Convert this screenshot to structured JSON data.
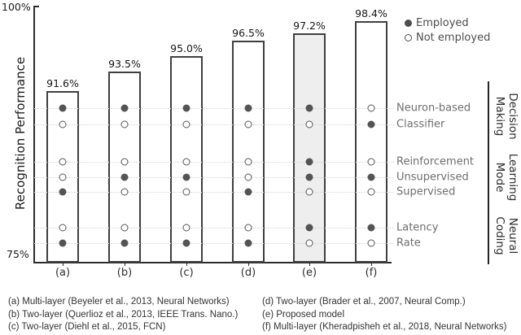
{
  "chart_data": {
    "type": "bar",
    "ylabel": "Recognition Performance",
    "ylim": [
      75,
      100
    ],
    "ytick_top": "100%",
    "ytick_bottom": "75%",
    "grid": "dotted horizontal guide line at each feature row",
    "categories": [
      "(a)",
      "(b)",
      "(c)",
      "(d)",
      "(e)",
      "(f)"
    ],
    "values": [
      91.6,
      93.5,
      95.0,
      96.5,
      97.2,
      98.4
    ],
    "value_labels": [
      "91.6%",
      "93.5%",
      "95.0%",
      "96.5%",
      "97.2%",
      "98.4%"
    ],
    "highlight_index": 4,
    "legend": {
      "position": "top-right",
      "items": [
        {
          "marker": "filled-circle",
          "label": "Employed"
        },
        {
          "marker": "open-circle",
          "label": "Not employed"
        }
      ]
    },
    "feature_rows": [
      {
        "label": "Neuron-based",
        "employed": [
          true,
          true,
          true,
          true,
          true,
          false
        ]
      },
      {
        "label": "Classifier",
        "employed": [
          false,
          false,
          false,
          false,
          false,
          true
        ]
      },
      {
        "label": "Reinforcement",
        "employed": [
          false,
          false,
          false,
          false,
          true,
          false
        ]
      },
      {
        "label": "Unsupervised",
        "employed": [
          false,
          true,
          true,
          false,
          true,
          true
        ]
      },
      {
        "label": "Supervised",
        "employed": [
          true,
          false,
          false,
          true,
          false,
          false
        ]
      },
      {
        "label": "Latency",
        "employed": [
          false,
          false,
          false,
          false,
          true,
          true
        ]
      },
      {
        "label": "Rate",
        "employed": [
          true,
          true,
          true,
          true,
          false,
          false
        ]
      }
    ],
    "row_groups": [
      {
        "label_lines": [
          "Decision",
          "Making"
        ],
        "rows": [
          0,
          1
        ]
      },
      {
        "label_lines": [
          "Learning",
          "Mode"
        ],
        "rows": [
          2,
          4
        ]
      },
      {
        "label_lines": [
          "Neural",
          "Coding"
        ],
        "rows": [
          5,
          6
        ]
      }
    ],
    "captions": [
      "(a) Multi-layer (Beyeler et al., 2013, Neural Networks)",
      "(b) Two-layer (Querlioz et al., 2013, IEEE Trans. Nano.)",
      "(c) Two-layer (Diehl et al., 2015, FCN)",
      "(d) Two-layer (Brader et al., 2007, Neural Comp.)",
      "(e) Proposed model",
      "(f) Multi-layer (Kheradpisheh et al., 2018, Neural Networks)"
    ],
    "colors": {
      "bar_border": "#3f3f3f",
      "highlight_fill": "#eeeeee",
      "dot": "#545454",
      "grid": "#d4d4d4",
      "axis": "#2b2b2b",
      "row_label_text": "#6e6e6e",
      "dark_text": "#1c1c1c"
    }
  }
}
